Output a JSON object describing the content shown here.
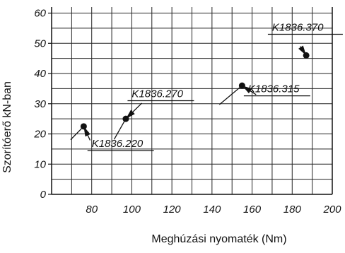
{
  "chart_data": {
    "type": "scatter",
    "title": "",
    "xlabel": "Meghúzási nyomaték (Nm)",
    "ylabel": "Szorítóerő kN-ban",
    "xlim": [
      60,
      200
    ],
    "ylim": [
      0,
      62
    ],
    "x_ticks": [
      "80",
      "100",
      "120",
      "140",
      "160",
      "180",
      "200"
    ],
    "y_ticks": [
      "0",
      "10",
      "20",
      "30",
      "40",
      "50",
      "60"
    ],
    "grid": true,
    "points": [
      {
        "label": "K1836.220",
        "x": 76,
        "y": 22.5
      },
      {
        "label": "K1836.270",
        "x": 97,
        "y": 25
      },
      {
        "label": "K1836.315",
        "x": 155,
        "y": 36
      },
      {
        "label": "K1836.370",
        "x": 187,
        "y": 46
      }
    ]
  }
}
